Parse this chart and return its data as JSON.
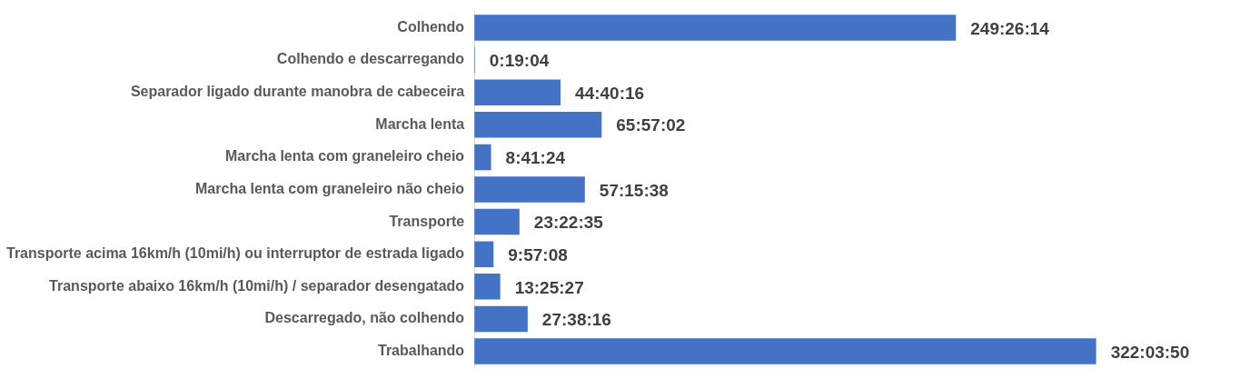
{
  "chart_data": {
    "type": "bar",
    "orientation": "horizontal",
    "categories": [
      "Colhendo",
      "Colhendo e descarregando",
      "Separador ligado durante manobra de cabeceira",
      "Marcha lenta",
      "Marcha lenta com graneleiro cheio",
      "Marcha lenta com graneleiro não cheio",
      "Transporte",
      "Transporte acima 16km/h (10mi/h) ou interruptor de estrada ligado",
      "Transporte abaixo 16km/h (10mi/h) / separador desengatado",
      "Descarregado, não colhendo",
      "Trabalhando"
    ],
    "values": [
      249.437222,
      0.317778,
      44.671111,
      65.950556,
      8.69,
      57.260556,
      23.376389,
      9.952222,
      13.424167,
      27.637778,
      322.063889
    ],
    "value_labels": [
      "249:26:14",
      "0:19:04",
      "44:40:16",
      "65:57:02",
      "8:41:24",
      "57:15:38",
      "23:22:35",
      "9:57:08",
      "13:25:27",
      "27:38:16",
      "322:03:50"
    ],
    "color": "#4472c4",
    "grid": false,
    "legend": false,
    "tick_labels": "y"
  }
}
